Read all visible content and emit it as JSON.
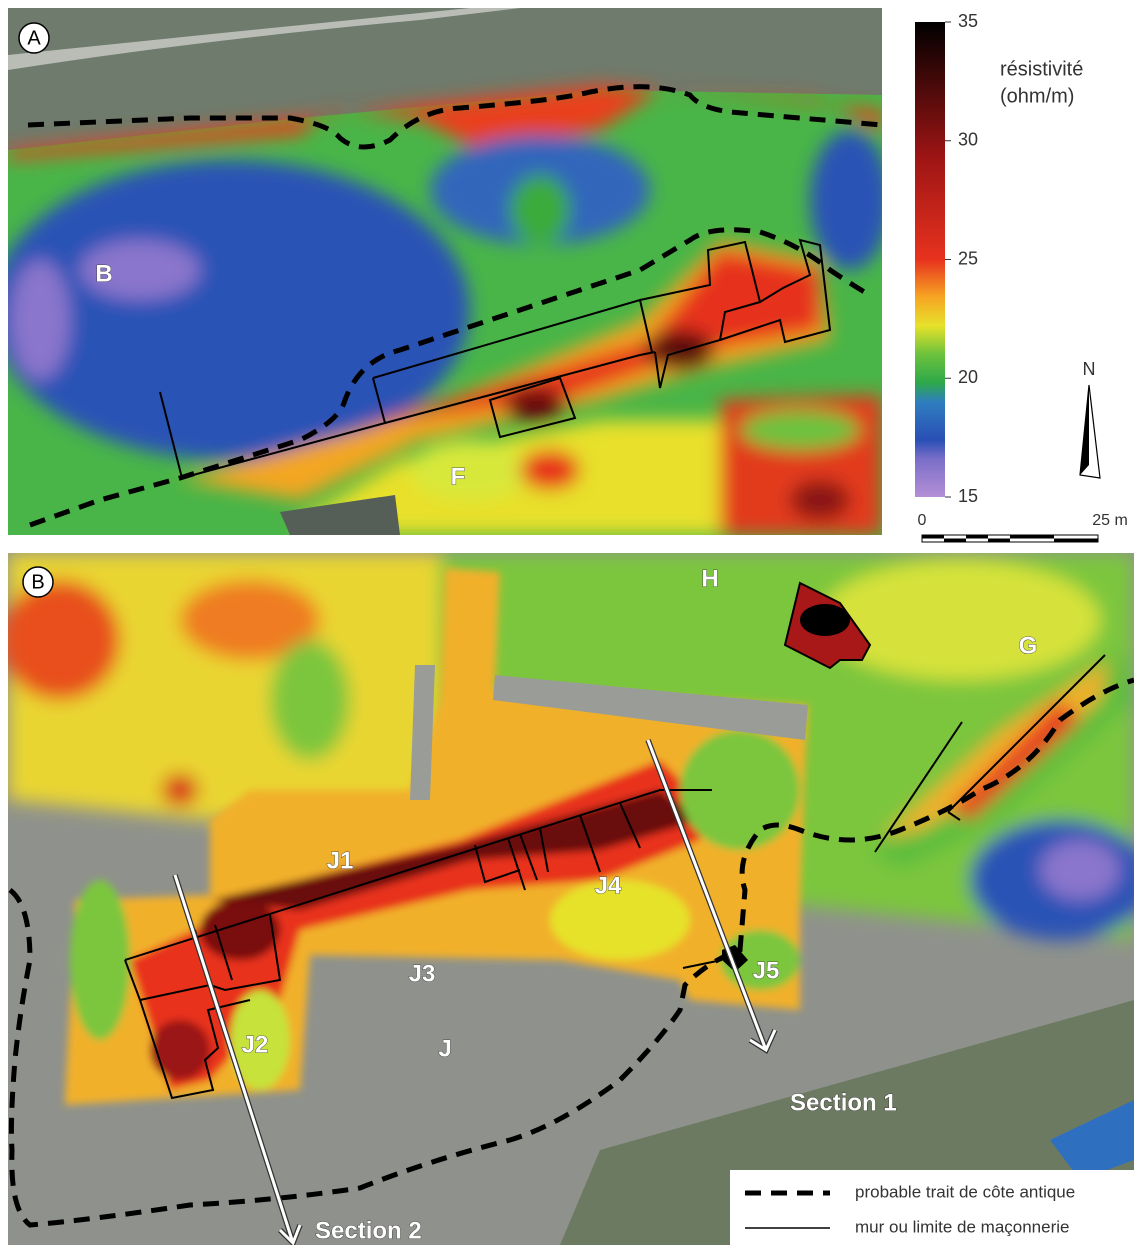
{
  "panel_a": {
    "label": "A",
    "zones": [
      "B",
      "F"
    ]
  },
  "panel_b": {
    "label": "B",
    "zones": [
      "H",
      "G",
      "J1",
      "J2",
      "J3",
      "J4",
      "J5",
      "J"
    ],
    "sections": [
      "Section 1",
      "Section 2"
    ]
  },
  "colorbar": {
    "title": "résistivité",
    "unit": "(ohm/m)",
    "range": [
      15,
      35
    ],
    "ticks": [
      15,
      20,
      25,
      30,
      35
    ]
  },
  "north": "N",
  "scale_bar": {
    "start": "0",
    "end": "25 m"
  },
  "legend": [
    "probable trait de côte antique",
    "mur ou limite de maçonnerie"
  ]
}
